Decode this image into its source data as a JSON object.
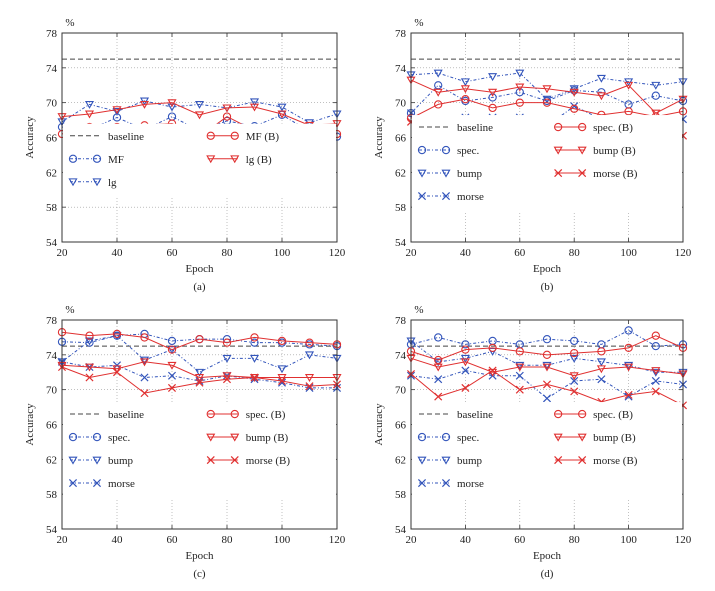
{
  "chart_data": [
    {
      "id": "a",
      "type": "line",
      "panel_label": "(a)",
      "unit_label": "%",
      "xlabel": "Epoch",
      "ylabel": "Accuracy",
      "xlim": [
        20,
        120
      ],
      "ylim": [
        54,
        78
      ],
      "xticks": [
        20,
        40,
        60,
        80,
        100,
        120
      ],
      "yticks": [
        54,
        58,
        62,
        66,
        70,
        74,
        78
      ],
      "grid": true,
      "x": [
        20,
        30,
        40,
        50,
        60,
        70,
        80,
        90,
        100,
        110,
        120
      ],
      "baseline": 75.0,
      "series": [
        {
          "name": "MF",
          "marker": "circle",
          "style": "dashdot",
          "color": "#3355bb",
          "values": [
            67.2,
            66.9,
            68.3,
            66.9,
            68.4,
            66.8,
            67.9,
            67.3,
            68.6,
            66.7,
            66.1
          ]
        },
        {
          "name": "lg",
          "marker": "triangle",
          "style": "dashdot",
          "color": "#3355bb",
          "values": [
            67.8,
            69.8,
            69.0,
            70.2,
            69.5,
            69.8,
            69.4,
            70.1,
            69.5,
            67.7,
            68.7
          ]
        },
        {
          "name": "MF (B)",
          "marker": "circle",
          "style": "solid",
          "color": "#e03030",
          "values": [
            66.4,
            67.2,
            67.2,
            67.4,
            67.6,
            66.1,
            68.4,
            66.8,
            67.0,
            67.0,
            66.4
          ]
        },
        {
          "name": "lg (B)",
          "marker": "triangle",
          "style": "solid",
          "color": "#e03030",
          "values": [
            68.4,
            68.7,
            69.2,
            69.8,
            70.0,
            68.6,
            69.4,
            69.5,
            68.7,
            67.4,
            67.6
          ]
        }
      ],
      "legend": [
        {
          "label": "baseline",
          "kind": "baseline"
        },
        {
          "label": "MF (B)",
          "series": 2
        },
        {
          "label": "MF",
          "series": 0
        },
        {
          "label": "lg (B)",
          "series": 3
        },
        {
          "label": "lg",
          "series": 1
        }
      ]
    },
    {
      "id": "b",
      "type": "line",
      "panel_label": "(b)",
      "unit_label": "%",
      "xlabel": "Epoch",
      "ylabel": "Accuracy",
      "xlim": [
        20,
        120
      ],
      "ylim": [
        54,
        78
      ],
      "xticks": [
        20,
        40,
        60,
        80,
        100,
        120
      ],
      "yticks": [
        54,
        58,
        62,
        66,
        70,
        74,
        78
      ],
      "grid": true,
      "x": [
        20,
        30,
        40,
        50,
        60,
        70,
        80,
        90,
        100,
        110,
        120
      ],
      "baseline": 75.0,
      "series": [
        {
          "name": "spec.",
          "marker": "circle",
          "style": "dashdot",
          "color": "#3355bb",
          "values": [
            68.8,
            72.0,
            70.2,
            70.6,
            71.2,
            70.2,
            71.4,
            71.2,
            69.8,
            70.8,
            70.2
          ]
        },
        {
          "name": "bump",
          "marker": "triangle",
          "style": "dashdot",
          "color": "#3355bb",
          "values": [
            73.2,
            73.4,
            72.4,
            73.0,
            73.4,
            70.4,
            71.6,
            72.8,
            72.4,
            72.0,
            72.4
          ]
        },
        {
          "name": "morse",
          "marker": "x",
          "style": "dashdot",
          "color": "#3355bb",
          "values": [
            68.8,
            67.3,
            68.3,
            68.3,
            68.3,
            67.3,
            69.6,
            68.1,
            67.6,
            66.8,
            68.1
          ]
        },
        {
          "name": "spec. (B)",
          "marker": "circle",
          "style": "solid",
          "color": "#e03030",
          "values": [
            68.2,
            69.8,
            70.4,
            69.4,
            70.0,
            70.0,
            69.3,
            68.6,
            69.0,
            68.4,
            69.0
          ]
        },
        {
          "name": "bump (B)",
          "marker": "triangle",
          "style": "solid",
          "color": "#e03030",
          "values": [
            72.6,
            71.2,
            71.6,
            71.2,
            71.8,
            71.6,
            71.2,
            70.8,
            72.0,
            68.8,
            70.4
          ]
        },
        {
          "name": "morse (B)",
          "marker": "x",
          "style": "solid",
          "color": "#e03030",
          "values": [
            67.8,
            67.0,
            66.9,
            67.0,
            66.6,
            67.6,
            67.5,
            67.1,
            66.8,
            67.0,
            66.2
          ]
        }
      ],
      "legend": [
        {
          "label": "baseline",
          "kind": "baseline"
        },
        {
          "label": "spec. (B)",
          "series": 3
        },
        {
          "label": "spec.",
          "series": 0
        },
        {
          "label": "bump (B)",
          "series": 4
        },
        {
          "label": "bump",
          "series": 1
        },
        {
          "label": "morse (B)",
          "series": 5
        },
        {
          "label": "morse",
          "series": 2
        }
      ]
    },
    {
      "id": "c",
      "type": "line",
      "panel_label": "(c)",
      "unit_label": "%",
      "xlabel": "Epoch",
      "ylabel": "Accuracy",
      "xlim": [
        20,
        120
      ],
      "ylim": [
        54,
        78
      ],
      "xticks": [
        20,
        40,
        60,
        80,
        100,
        120
      ],
      "yticks": [
        54,
        58,
        62,
        66,
        70,
        74,
        78
      ],
      "grid": true,
      "x": [
        20,
        30,
        40,
        50,
        60,
        70,
        80,
        90,
        100,
        110,
        120
      ],
      "baseline": 75.0,
      "series": [
        {
          "name": "spec.",
          "marker": "circle",
          "style": "dashdot",
          "color": "#3355bb",
          "values": [
            75.5,
            75.4,
            76.2,
            76.4,
            75.6,
            75.8,
            75.8,
            75.4,
            75.4,
            75.2,
            75.0
          ]
        },
        {
          "name": "bump",
          "marker": "triangle",
          "style": "dashdot",
          "color": "#3355bb",
          "values": [
            73.2,
            75.6,
            76.2,
            73.4,
            74.6,
            72.0,
            73.6,
            73.6,
            72.4,
            74.0,
            73.6
          ]
        },
        {
          "name": "morse",
          "marker": "x",
          "style": "dashdot",
          "color": "#3355bb",
          "values": [
            73.2,
            72.6,
            72.8,
            71.4,
            71.6,
            71.0,
            71.6,
            71.2,
            70.8,
            70.2,
            70.2
          ]
        },
        {
          "name": "spec. (B)",
          "marker": "circle",
          "style": "solid",
          "color": "#e03030",
          "values": [
            76.6,
            76.2,
            76.4,
            76.0,
            74.6,
            75.8,
            75.4,
            76.0,
            75.6,
            75.4,
            75.2
          ]
        },
        {
          "name": "bump (B)",
          "marker": "triangle",
          "style": "solid",
          "color": "#e03030",
          "values": [
            72.8,
            72.6,
            72.4,
            73.2,
            72.8,
            71.4,
            71.6,
            71.4,
            71.4,
            71.4,
            71.4
          ]
        },
        {
          "name": "morse (B)",
          "marker": "x",
          "style": "solid",
          "color": "#e03030",
          "values": [
            72.6,
            71.4,
            72.0,
            69.6,
            70.2,
            70.8,
            71.2,
            71.4,
            71.0,
            70.4,
            70.6
          ]
        }
      ],
      "legend": [
        {
          "label": "baseline",
          "kind": "baseline"
        },
        {
          "label": "spec. (B)",
          "series": 3
        },
        {
          "label": "spec.",
          "series": 0
        },
        {
          "label": "bump (B)",
          "series": 4
        },
        {
          "label": "bump",
          "series": 1
        },
        {
          "label": "morse (B)",
          "series": 5
        },
        {
          "label": "morse",
          "series": 2
        }
      ]
    },
    {
      "id": "d",
      "type": "line",
      "panel_label": "(d)",
      "unit_label": "%",
      "xlabel": "Epoch",
      "ylabel": "Accuracy",
      "xlim": [
        20,
        120
      ],
      "ylim": [
        54,
        78
      ],
      "xticks": [
        20,
        40,
        60,
        80,
        100,
        120
      ],
      "yticks": [
        54,
        58,
        62,
        66,
        70,
        74,
        78
      ],
      "grid": true,
      "x": [
        20,
        30,
        40,
        50,
        60,
        70,
        80,
        90,
        100,
        110,
        120
      ],
      "baseline": 75.0,
      "series": [
        {
          "name": "spec.",
          "marker": "circle",
          "style": "dashdot",
          "color": "#3355bb",
          "values": [
            75.2,
            76.0,
            75.2,
            75.6,
            75.2,
            75.8,
            75.6,
            75.2,
            76.8,
            75.0,
            75.2
          ]
        },
        {
          "name": "bump",
          "marker": "triangle",
          "style": "dashdot",
          "color": "#3355bb",
          "values": [
            75.6,
            73.2,
            73.6,
            74.4,
            72.8,
            72.8,
            73.6,
            73.2,
            72.8,
            72.0,
            72.0
          ]
        },
        {
          "name": "morse",
          "marker": "x",
          "style": "dashdot",
          "color": "#3355bb",
          "values": [
            71.6,
            71.2,
            72.2,
            71.6,
            71.6,
            69.0,
            71.0,
            71.2,
            69.2,
            71.0,
            70.6
          ]
        },
        {
          "name": "spec. (B)",
          "marker": "circle",
          "style": "solid",
          "color": "#e03030",
          "values": [
            74.4,
            73.4,
            74.6,
            74.8,
            74.4,
            74.0,
            74.2,
            74.4,
            74.8,
            76.2,
            74.8
          ]
        },
        {
          "name": "bump (B)",
          "marker": "triangle",
          "style": "solid",
          "color": "#e03030",
          "values": [
            73.6,
            72.6,
            73.2,
            72.0,
            72.6,
            72.6,
            71.6,
            72.4,
            72.6,
            72.2,
            71.8
          ]
        },
        {
          "name": "morse (B)",
          "marker": "x",
          "style": "solid",
          "color": "#e03030",
          "values": [
            71.8,
            69.2,
            70.2,
            72.2,
            70.0,
            70.6,
            69.8,
            68.6,
            69.4,
            69.8,
            68.2
          ]
        }
      ],
      "legend": [
        {
          "label": "baseline",
          "kind": "baseline"
        },
        {
          "label": "spec. (B)",
          "series": 3
        },
        {
          "label": "spec.",
          "series": 0
        },
        {
          "label": "bump (B)",
          "series": 4
        },
        {
          "label": "bump",
          "series": 1
        },
        {
          "label": "morse (B)",
          "series": 5
        },
        {
          "label": "morse",
          "series": 2
        }
      ]
    }
  ]
}
